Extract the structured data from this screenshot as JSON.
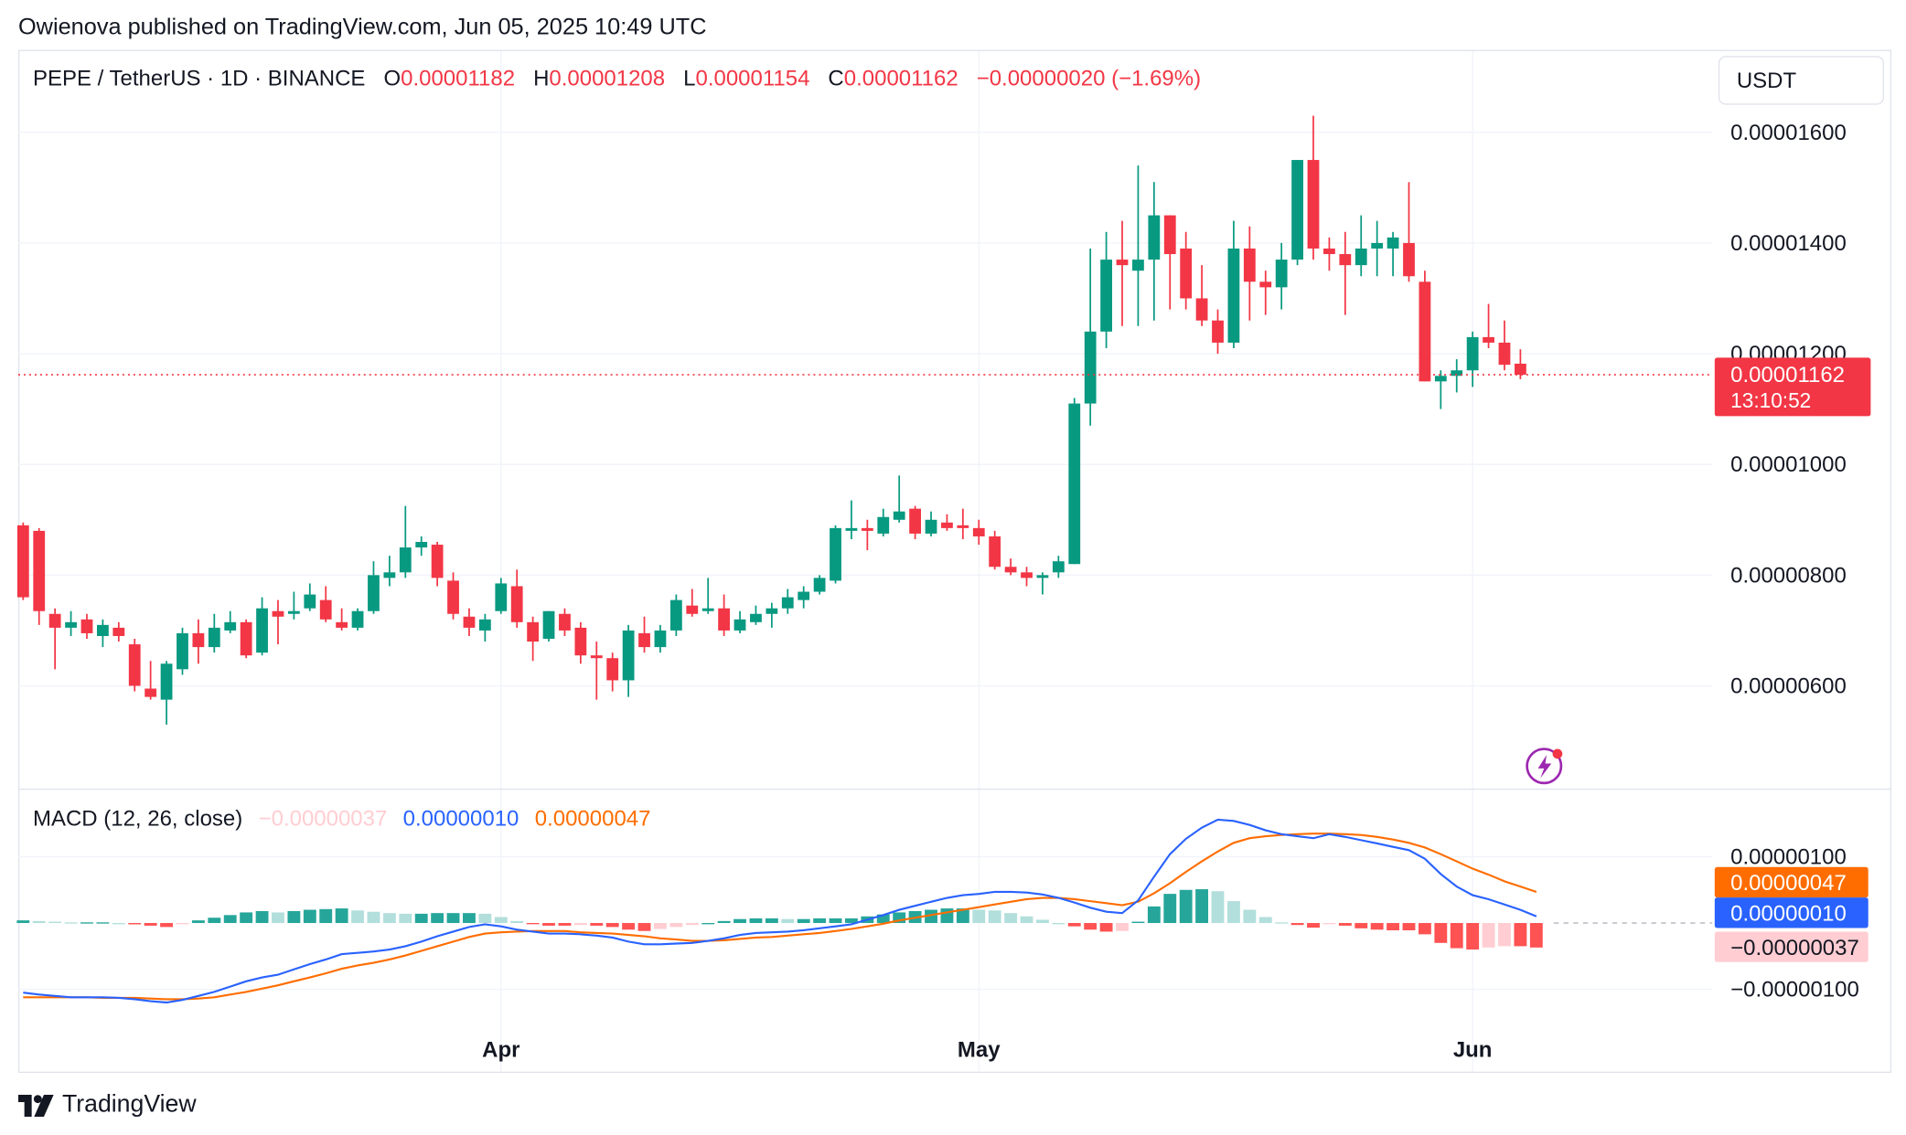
{
  "header": {
    "published": "Owienova published on TradingView.com, Jun 05, 2025 10:49 UTC"
  },
  "legend": {
    "symbol": "PEPE / TetherUS · 1D · BINANCE",
    "open_label": "O",
    "open": "0.00001182",
    "high_label": "H",
    "high": "0.00001208",
    "low_label": "L",
    "low": "0.00001154",
    "close_label": "C",
    "close": "0.00001162",
    "change": "−0.00000020 (−1.69%)"
  },
  "currency": "USDT",
  "price_axis": {
    "ticks": [
      "0.00001600",
      "0.00001400",
      "0.00001200",
      "0.00001000",
      "0.00000800",
      "0.00000600"
    ],
    "last_price": "0.00001162",
    "countdown": "13:10:52"
  },
  "macd": {
    "title": "MACD (12, 26, close)",
    "hist_value": "−0.00000037",
    "macd_value": "0.00000010",
    "signal_value": "0.00000047",
    "ticks": [
      "0.00000100",
      "−0.00000100"
    ],
    "badge_signal": "0.00000047",
    "badge_macd": "0.00000010",
    "badge_hist": "−0.00000037"
  },
  "time_axis": {
    "labels": [
      "Apr",
      "May",
      "Jun"
    ]
  },
  "brand": {
    "name": "TradingView"
  },
  "colors": {
    "up": "#089981",
    "down": "#f23645",
    "macd_line": "#2962ff",
    "signal_line": "#ff6d00",
    "hist_up_strong": "#26a69a",
    "hist_up_weak": "#b2dfdb",
    "hist_down_strong": "#ff5252",
    "hist_down_weak": "#ffcdd2"
  },
  "chart_data": [
    {
      "type": "candlestick",
      "title": "PEPE / TetherUS · 1D · BINANCE",
      "y_unit": "USDT",
      "ylim": [
        4.2e-06,
        1.63e-05
      ],
      "grid": true,
      "x_labels": [
        "Apr",
        "May",
        "Jun"
      ],
      "candles": [
        [
          8.9e-06,
          8.95e-06,
          7.55e-06,
          7.6e-06
        ],
        [
          8.8e-06,
          8.85e-06,
          7.1e-06,
          7.35e-06
        ],
        [
          7.3e-06,
          7.4e-06,
          6.3e-06,
          7.05e-06
        ],
        [
          7.05e-06,
          7.35e-06,
          6.9e-06,
          7.15e-06
        ],
        [
          7.2e-06,
          7.3e-06,
          6.85e-06,
          6.95e-06
        ],
        [
          6.9e-06,
          7.2e-06,
          6.7e-06,
          7.1e-06
        ],
        [
          7.05e-06,
          7.15e-06,
          6.8e-06,
          6.9e-06
        ],
        [
          6.75e-06,
          6.85e-06,
          5.9e-06,
          6e-06
        ],
        [
          5.95e-06,
          6.45e-06,
          5.75e-06,
          5.8e-06
        ],
        [
          5.75e-06,
          6.45e-06,
          5.3e-06,
          6.4e-06
        ],
        [
          6.3e-06,
          7.05e-06,
          6.2e-06,
          6.95e-06
        ],
        [
          6.95e-06,
          7.2e-06,
          6.4e-06,
          6.7e-06
        ],
        [
          6.7e-06,
          7.3e-06,
          6.6e-06,
          7.05e-06
        ],
        [
          7e-06,
          7.35e-06,
          6.95e-06,
          7.15e-06
        ],
        [
          7.15e-06,
          7.2e-06,
          6.5e-06,
          6.55e-06
        ],
        [
          6.6e-06,
          7.6e-06,
          6.55e-06,
          7.4e-06
        ],
        [
          7.35e-06,
          7.55e-06,
          6.75e-06,
          7.25e-06
        ],
        [
          7.3e-06,
          7.7e-06,
          7.2e-06,
          7.35e-06
        ],
        [
          7.4e-06,
          7.85e-06,
          7.35e-06,
          7.65e-06
        ],
        [
          7.55e-06,
          7.8e-06,
          7.15e-06,
          7.2e-06
        ],
        [
          7.15e-06,
          7.4e-06,
          7e-06,
          7.05e-06
        ],
        [
          7.05e-06,
          7.4e-06,
          7e-06,
          7.35e-06
        ],
        [
          7.35e-06,
          8.25e-06,
          7.3e-06,
          8e-06
        ],
        [
          7.95e-06,
          8.35e-06,
          7.8e-06,
          8.05e-06
        ],
        [
          8.05e-06,
          9.25e-06,
          7.95e-06,
          8.5e-06
        ],
        [
          8.5e-06,
          8.7e-06,
          8.35e-06,
          8.6e-06
        ],
        [
          8.55e-06,
          8.6e-06,
          7.8e-06,
          7.95e-06
        ],
        [
          7.9e-06,
          8.05e-06,
          7.2e-06,
          7.3e-06
        ],
        [
          7.25e-06,
          7.4e-06,
          6.9e-06,
          7.05e-06
        ],
        [
          7e-06,
          7.3e-06,
          6.8e-06,
          7.2e-06
        ],
        [
          7.35e-06,
          7.95e-06,
          7.3e-06,
          7.85e-06
        ],
        [
          7.8e-06,
          8.1e-06,
          7.05e-06,
          7.15e-06
        ],
        [
          7.15e-06,
          7.25e-06,
          6.45e-06,
          6.8e-06
        ],
        [
          6.85e-06,
          7.35e-06,
          6.8e-06,
          7.35e-06
        ],
        [
          7.3e-06,
          7.4e-06,
          6.9e-06,
          7e-06
        ],
        [
          7.05e-06,
          7.15e-06,
          6.4e-06,
          6.55e-06
        ],
        [
          6.55e-06,
          6.8e-06,
          5.75e-06,
          6.5e-06
        ],
        [
          6.5e-06,
          6.6e-06,
          5.9e-06,
          6.1e-06
        ],
        [
          6.1e-06,
          7.1e-06,
          5.8e-06,
          7e-06
        ],
        [
          6.95e-06,
          7.25e-06,
          6.6e-06,
          6.7e-06
        ],
        [
          6.7e-06,
          7.1e-06,
          6.6e-06,
          7e-06
        ],
        [
          7e-06,
          7.65e-06,
          6.9e-06,
          7.55e-06
        ],
        [
          7.45e-06,
          7.75e-06,
          7.25e-06,
          7.3e-06
        ],
        [
          7.35e-06,
          7.95e-06,
          7.3e-06,
          7.4e-06
        ],
        [
          7.4e-06,
          7.65e-06,
          6.9e-06,
          7e-06
        ],
        [
          7e-06,
          7.35e-06,
          6.95e-06,
          7.2e-06
        ],
        [
          7.15e-06,
          7.45e-06,
          7.1e-06,
          7.3e-06
        ],
        [
          7.3e-06,
          7.5e-06,
          7.05e-06,
          7.4e-06
        ],
        [
          7.4e-06,
          7.75e-06,
          7.3e-06,
          7.6e-06
        ],
        [
          7.55e-06,
          7.8e-06,
          7.4e-06,
          7.7e-06
        ],
        [
          7.7e-06,
          8e-06,
          7.65e-06,
          7.95e-06
        ],
        [
          7.9e-06,
          8.9e-06,
          7.85e-06,
          8.85e-06
        ],
        [
          8.8e-06,
          9.35e-06,
          8.65e-06,
          8.85e-06
        ],
        [
          8.85e-06,
          9e-06,
          8.45e-06,
          8.8e-06
        ],
        [
          8.75e-06,
          9.2e-06,
          8.7e-06,
          9.05e-06
        ],
        [
          9e-06,
          9.8e-06,
          8.95e-06,
          9.15e-06
        ],
        [
          9.2e-06,
          9.25e-06,
          8.65e-06,
          8.75e-06
        ],
        [
          8.75e-06,
          9.15e-06,
          8.7e-06,
          9e-06
        ],
        [
          8.95e-06,
          9.1e-06,
          8.8e-06,
          8.85e-06
        ],
        [
          8.9e-06,
          9.2e-06,
          8.65e-06,
          8.85e-06
        ],
        [
          8.85e-06,
          9e-06,
          8.55e-06,
          8.7e-06
        ],
        [
          8.7e-06,
          8.8e-06,
          8.1e-06,
          8.15e-06
        ],
        [
          8.15e-06,
          8.3e-06,
          8e-06,
          8.05e-06
        ],
        [
          8.05e-06,
          8.15e-06,
          7.8e-06,
          7.95e-06
        ],
        [
          7.95e-06,
          8.05e-06,
          7.65e-06,
          8e-06
        ],
        [
          8.05e-06,
          8.35e-06,
          7.95e-06,
          8.25e-06
        ],
        [
          8.2e-06,
          1.12e-05,
          8.2e-06,
          1.11e-05
        ],
        [
          1.11e-05,
          1.39e-05,
          1.07e-05,
          1.24e-05
        ],
        [
          1.24e-05,
          1.42e-05,
          1.21e-05,
          1.37e-05
        ],
        [
          1.37e-05,
          1.44e-05,
          1.25e-05,
          1.36e-05
        ],
        [
          1.35e-05,
          1.54e-05,
          1.25e-05,
          1.37e-05
        ],
        [
          1.37e-05,
          1.51e-05,
          1.26e-05,
          1.45e-05
        ],
        [
          1.45e-05,
          1.45e-05,
          1.28e-05,
          1.38e-05
        ],
        [
          1.39e-05,
          1.42e-05,
          1.28e-05,
          1.3e-05
        ],
        [
          1.3e-05,
          1.36e-05,
          1.25e-05,
          1.26e-05
        ],
        [
          1.26e-05,
          1.28e-05,
          1.2e-05,
          1.22e-05
        ],
        [
          1.22e-05,
          1.44e-05,
          1.21e-05,
          1.39e-05
        ],
        [
          1.39e-05,
          1.43e-05,
          1.26e-05,
          1.33e-05
        ],
        [
          1.33e-05,
          1.35e-05,
          1.27e-05,
          1.32e-05
        ],
        [
          1.32e-05,
          1.4e-05,
          1.28e-05,
          1.37e-05
        ],
        [
          1.37e-05,
          1.55e-05,
          1.36e-05,
          1.55e-05
        ],
        [
          1.55e-05,
          1.63e-05,
          1.37e-05,
          1.39e-05
        ],
        [
          1.39e-05,
          1.41e-05,
          1.35e-05,
          1.38e-05
        ],
        [
          1.38e-05,
          1.42e-05,
          1.27e-05,
          1.36e-05
        ],
        [
          1.36e-05,
          1.45e-05,
          1.34e-05,
          1.39e-05
        ],
        [
          1.39e-05,
          1.44e-05,
          1.34e-05,
          1.4e-05
        ],
        [
          1.39e-05,
          1.42e-05,
          1.34e-05,
          1.41e-05
        ],
        [
          1.4e-05,
          1.51e-05,
          1.33e-05,
          1.34e-05
        ],
        [
          1.33e-05,
          1.35e-05,
          1.15e-05,
          1.15e-05
        ],
        [
          1.15e-05,
          1.17e-05,
          1.1e-05,
          1.16e-05
        ],
        [
          1.16e-05,
          1.19e-05,
          1.13e-05,
          1.17e-05
        ],
        [
          1.17e-05,
          1.24e-05,
          1.14e-05,
          1.23e-05
        ],
        [
          1.23e-05,
          1.29e-05,
          1.21e-05,
          1.22e-05
        ],
        [
          1.22e-05,
          1.26e-05,
          1.17e-05,
          1.18e-05
        ],
        [
          1.182e-05,
          1.208e-05,
          1.154e-05,
          1.162e-05
        ]
      ],
      "last_price": 1.162e-05
    },
    {
      "type": "line",
      "title": "MACD (12, 26, close)",
      "ylim": [
        -1.6e-06,
        1.8e-06
      ],
      "series": [
        {
          "values": [
            -1.05e-06,
            -1.08e-06,
            -1.1e-06,
            -1.12e-06,
            -1.12e-06,
            -1.12e-06,
            -1.13e-06,
            -1.15e-06,
            -1.18e-06,
            -1.2e-06,
            -1.16e-06,
            -1.1e-06,
            -1.04e-06,
            -9.6e-07,
            -8.8e-07,
            -8.2e-07,
            -7.8e-07,
            -7e-07,
            -6.2e-07,
            -5.5e-07,
            -4.7e-07,
            -4.5e-07,
            -4.3e-07,
            -4e-07,
            -3.5e-07,
            -2.8e-07,
            -2e-07,
            -1.3e-07,
            -6e-08,
            -2e-08,
            -5e-08,
            -1e-07,
            -1.3e-07,
            -1.6e-07,
            -1.6e-07,
            -1.7e-07,
            -1.9e-07,
            -2.2e-07,
            -2.8e-07,
            -3.2e-07,
            -3.2e-07,
            -3.1e-07,
            -3e-07,
            -2.7e-07,
            -2.3e-07,
            -1.8e-07,
            -1.5e-07,
            -1.4e-07,
            -1.3e-07,
            -1.1e-07,
            -8e-08,
            -5e-08,
            -2e-08,
            5e-08,
            1.2e-07,
            2e-07,
            2.6e-07,
            3.2e-07,
            3.8e-07,
            4.2e-07,
            4.4e-07,
            4.7e-07,
            4.7e-07,
            4.6e-07,
            4.3e-07,
            3.8e-07,
            3.1e-07,
            2.3e-07,
            1.7e-07,
            1.5e-07,
            3.4e-07,
            7e-07,
            1.04e-06,
            1.27e-06,
            1.44e-06,
            1.56e-06,
            1.54e-06,
            1.48e-06,
            1.4e-06,
            1.34e-06,
            1.31e-06,
            1.28e-06,
            1.34e-06,
            1.3e-06,
            1.25e-06,
            1.2e-06,
            1.15e-06,
            1.1e-06,
            9.7e-07,
            7.4e-07,
            5.5e-07,
            4.2e-07,
            3.6e-07,
            2.8e-07,
            2e-07,
            1e-07
          ]
        },
        {
          "values": [
            -1.12e-06,
            -1.12e-06,
            -1.12e-06,
            -1.12e-06,
            -1.12e-06,
            -1.13e-06,
            -1.13e-06,
            -1.13e-06,
            -1.14e-06,
            -1.15e-06,
            -1.15e-06,
            -1.14e-06,
            -1.12e-06,
            -1.08e-06,
            -1.04e-06,
            -9.9e-07,
            -9.4e-07,
            -8.8e-07,
            -8.2e-07,
            -7.6e-07,
            -6.9e-07,
            -6.4e-07,
            -6e-07,
            -5.5e-07,
            -4.9e-07,
            -4.2e-07,
            -3.5e-07,
            -2.8e-07,
            -2.1e-07,
            -1.6e-07,
            -1.4e-07,
            -1.3e-07,
            -1.2e-07,
            -1.2e-07,
            -1.2e-07,
            -1.4e-07,
            -1.5e-07,
            -1.6e-07,
            -1.8e-07,
            -2e-07,
            -2.3e-07,
            -2.5e-07,
            -2.7e-07,
            -2.7e-07,
            -2.6e-07,
            -2.4e-07,
            -2.2e-07,
            -2.1e-07,
            -1.9e-07,
            -1.7e-07,
            -1.5e-07,
            -1.2e-07,
            -9e-08,
            -5e-08,
            -1e-08,
            4e-08,
            8e-08,
            1.2e-07,
            1.6e-07,
            2e-07,
            2.4e-07,
            2.8e-07,
            3.2e-07,
            3.6e-07,
            3.8e-07,
            3.8e-07,
            3.6e-07,
            3.3e-07,
            3e-07,
            2.7e-07,
            3.2e-07,
            4.5e-07,
            6e-07,
            7.7e-07,
            9.3e-07,
            1.08e-06,
            1.21e-06,
            1.28e-06,
            1.31e-06,
            1.33e-06,
            1.34e-06,
            1.35e-06,
            1.35e-06,
            1.34e-06,
            1.33e-06,
            1.3e-06,
            1.26e-06,
            1.21e-06,
            1.14e-06,
            1.04e-06,
            9.3e-07,
            8.2e-07,
            7.3e-07,
            6.3e-07,
            5.5e-07,
            4.7e-07
          ]
        }
      ],
      "histogram": [
        4e-08,
        3e-08,
        2e-08,
        1e-08,
        1e-08,
        1e-08,
        0.0,
        -2e-08,
        -4e-08,
        -6e-08,
        -1e-08,
        4e-08,
        8e-08,
        1.2e-07,
        1.6e-07,
        1.8e-07,
        1.6e-07,
        1.8e-07,
        2e-07,
        2.1e-07,
        2.2e-07,
        1.9e-07,
        1.7e-07,
        1.5e-07,
        1.4e-07,
        1.4e-07,
        1.5e-07,
        1.5e-07,
        1.5e-07,
        1.4e-07,
        9e-08,
        3e-08,
        -1e-08,
        -4e-08,
        -4e-08,
        -3e-08,
        -4e-08,
        -6e-08,
        -1e-07,
        -1.2e-07,
        -9e-08,
        -6e-08,
        -3e-08,
        0.0,
        3e-08,
        6e-08,
        7e-08,
        7e-08,
        6e-08,
        6e-08,
        7e-08,
        7e-08,
        7e-08,
        1e-07,
        1.3e-07,
        1.6e-07,
        1.8e-07,
        2e-07,
        2.2e-07,
        2.2e-07,
        2e-07,
        1.9e-07,
        1.5e-07,
        1e-07,
        5e-08,
        0.0,
        -5e-08,
        -1e-07,
        -1.3e-07,
        -1.2e-07,
        2e-08,
        2.5e-07,
        4.4e-07,
        5e-07,
        5.1e-07,
        4.8e-07,
        3.3e-07,
        2e-07,
        9e-08,
        1e-08,
        -3e-08,
        -7e-08,
        -1e-08,
        -4e-08,
        -8e-08,
        -1e-07,
        -1.1e-07,
        -1.1e-07,
        -1.7e-07,
        -3e-07,
        -3.8e-07,
        -4e-07,
        -3.7e-07,
        -3.5e-07,
        -3.5e-07,
        -3.7e-07
      ]
    }
  ]
}
